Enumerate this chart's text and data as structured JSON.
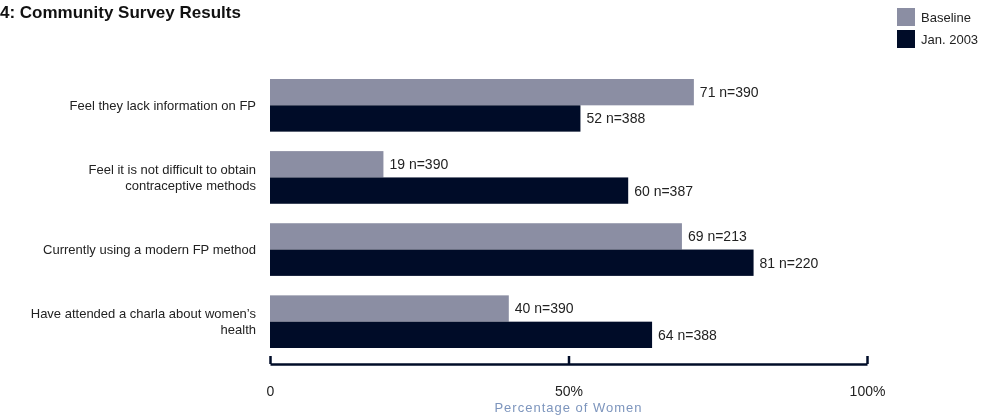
{
  "chart_data": {
    "type": "bar",
    "orientation": "horizontal",
    "title": "4: Community Survey Results",
    "xlabel": "Percentage of Women",
    "categories": [
      "Feel they lack information on FP",
      "Feel it is not difficult to obtain contraceptive methods",
      "Currently using a modern FP method",
      "Have attended a charla about women’s health"
    ],
    "series": [
      {
        "name": "Baseline",
        "color": "#8b8ea3",
        "values": [
          71,
          19,
          69,
          40
        ],
        "value_labels": [
          "71  n=390",
          "19  n=390",
          "69  n=213",
          "40  n=390"
        ]
      },
      {
        "name": "Jan. 2003",
        "color": "#000c28",
        "values": [
          52,
          60,
          81,
          64
        ],
        "value_labels": [
          "52  n=388",
          "60  n=387",
          "81  n=220",
          "64  n=388"
        ]
      }
    ],
    "xlim": [
      0,
      100
    ],
    "xticks": [
      0,
      {
        "value": 50,
        "label": "50%"
      },
      {
        "value": 100,
        "label": "100%"
      }
    ],
    "legend": "top right",
    "grid": false
  }
}
